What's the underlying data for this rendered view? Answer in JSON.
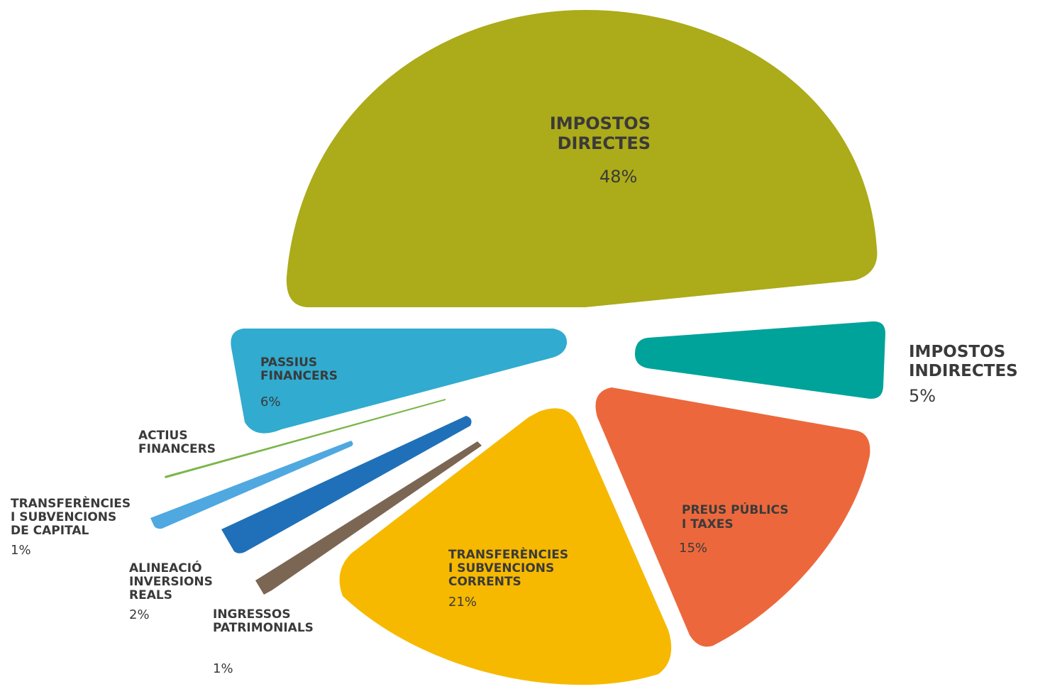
{
  "chart_data": {
    "type": "pie",
    "slices": [
      {
        "lines": [
          "IMPOSTOS",
          "DIRECTES"
        ],
        "value_label": "48%",
        "value": 48,
        "color": "#acab19"
      },
      {
        "lines": [
          "IMPOSTOS",
          "INDIRECTES"
        ],
        "value_label": "5%",
        "value": 5,
        "color": "#00a39a"
      },
      {
        "lines": [
          "PREUS PÚBLICS",
          "I TAXES"
        ],
        "value_label": "15%",
        "value": 15,
        "color": "#ec683c"
      },
      {
        "lines": [
          "TRANSFERÈNCIES",
          "I SUBVENCIONS",
          "CORRENTS"
        ],
        "value_label": "21%",
        "value": 21,
        "color": "#f6b900"
      },
      {
        "lines": [
          "INGRESSOS",
          "PATRIMONIALS"
        ],
        "value_label": "1%",
        "value": 1,
        "color": "#7b6654"
      },
      {
        "lines": [
          "ALINEACIÓ",
          "INVERSIONS",
          "REALS"
        ],
        "value_label": "2%",
        "value": 2,
        "color": "#1f70b8"
      },
      {
        "lines": [
          "TRANSFERÈNCIES",
          "I SUBVENCIONS",
          "DE CAPITAL"
        ],
        "value_label": "1%",
        "value": 1,
        "color": "#4fa8e0"
      },
      {
        "lines": [
          "ACTIUS",
          "FINANCERS"
        ],
        "value_label": "",
        "value": 0,
        "color": "#7ab648"
      },
      {
        "lines": [
          "PASSIUS",
          "FINANCERS"
        ],
        "value_label": "6%",
        "value": 6,
        "color": "#31abcf"
      }
    ]
  }
}
